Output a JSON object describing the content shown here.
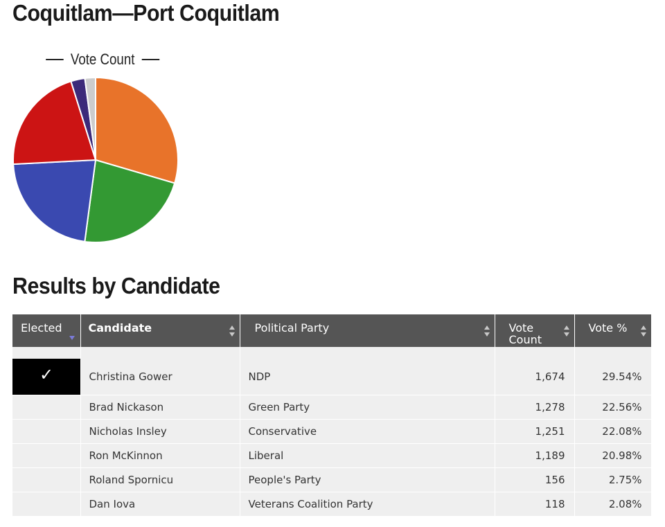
{
  "page": {
    "title": "Coquitlam—Port Coquitlam",
    "section_title": "Results by Candidate"
  },
  "chart_data": {
    "type": "pie",
    "legend": "Vote Count",
    "legend_position": "top",
    "slices": [
      {
        "label": "Christina Gower",
        "value": 1674,
        "color": "#e8732a"
      },
      {
        "label": "Brad Nickason",
        "value": 1278,
        "color": "#339933"
      },
      {
        "label": "Nicholas Insley",
        "value": 1251,
        "color": "#3a49b0"
      },
      {
        "label": "Ron McKinnon",
        "value": 1189,
        "color": "#cc1414"
      },
      {
        "label": "Roland Spornicu",
        "value": 156,
        "color": "#3c2a7a"
      },
      {
        "label": "Dan Iova",
        "value": 118,
        "color": "#cccccc"
      }
    ]
  },
  "table": {
    "headers": {
      "elected": "Elected",
      "candidate": "Candidate",
      "party": "Political Party",
      "votes": "Vote Count",
      "percent": "Vote %"
    },
    "check_mark": "✓",
    "rows": [
      {
        "elected": true,
        "candidate": "Christina Gower",
        "party": "NDP",
        "votes": "1,674",
        "percent": "29.54%"
      },
      {
        "elected": false,
        "candidate": "Brad Nickason",
        "party": "Green Party",
        "votes": "1,278",
        "percent": "22.56%"
      },
      {
        "elected": false,
        "candidate": "Nicholas Insley",
        "party": "Conservative",
        "votes": "1,251",
        "percent": "22.08%"
      },
      {
        "elected": false,
        "candidate": "Ron McKinnon",
        "party": "Liberal",
        "votes": "1,189",
        "percent": "20.98%"
      },
      {
        "elected": false,
        "candidate": "Roland Spornicu",
        "party": "People's Party",
        "votes": "156",
        "percent": "2.75%"
      },
      {
        "elected": false,
        "candidate": "Dan Iova",
        "party": "Veterans Coalition Party",
        "votes": "118",
        "percent": "2.08%"
      }
    ]
  }
}
